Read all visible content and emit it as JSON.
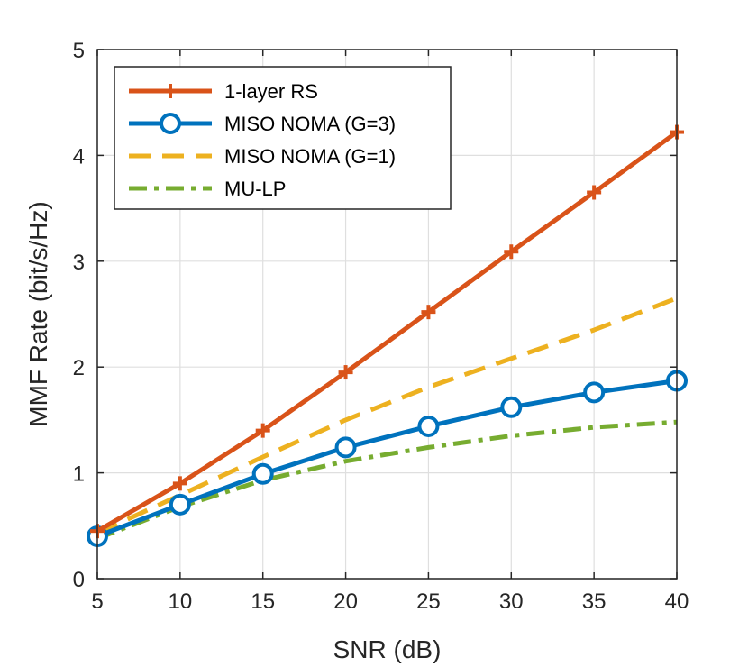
{
  "chart_data": {
    "type": "line",
    "title": "",
    "xlabel": "SNR (dB)",
    "ylabel": "MMF Rate (bit/s/Hz)",
    "xlim": [
      5,
      40
    ],
    "ylim": [
      0,
      5
    ],
    "xticks": [
      5,
      10,
      15,
      20,
      25,
      30,
      35,
      40
    ],
    "yticks": [
      0,
      1,
      2,
      3,
      4,
      5
    ],
    "grid": true,
    "legend_position": "top-left",
    "x": [
      5,
      10,
      15,
      20,
      25,
      30,
      35,
      40
    ],
    "series": [
      {
        "name": "1-layer RS",
        "values": [
          0.45,
          0.9,
          1.4,
          1.95,
          2.52,
          3.09,
          3.65,
          4.22
        ],
        "color": "#D95319",
        "marker": "plus",
        "line_style": "solid"
      },
      {
        "name": "MISO NOMA (G=3)",
        "values": [
          0.4,
          0.7,
          0.99,
          1.24,
          1.44,
          1.62,
          1.76,
          1.87
        ],
        "color": "#0072BD",
        "marker": "circle",
        "line_style": "solid"
      },
      {
        "name": "MISO NOMA (G=1)",
        "values": [
          0.43,
          0.79,
          1.15,
          1.5,
          1.81,
          2.08,
          2.35,
          2.65
        ],
        "color": "#EDB120",
        "marker": "none",
        "line_style": "dashed"
      },
      {
        "name": "MU-LP",
        "values": [
          0.38,
          0.68,
          0.93,
          1.11,
          1.24,
          1.35,
          1.43,
          1.48
        ],
        "color": "#77AC30",
        "marker": "none",
        "line_style": "dashdot"
      }
    ]
  }
}
